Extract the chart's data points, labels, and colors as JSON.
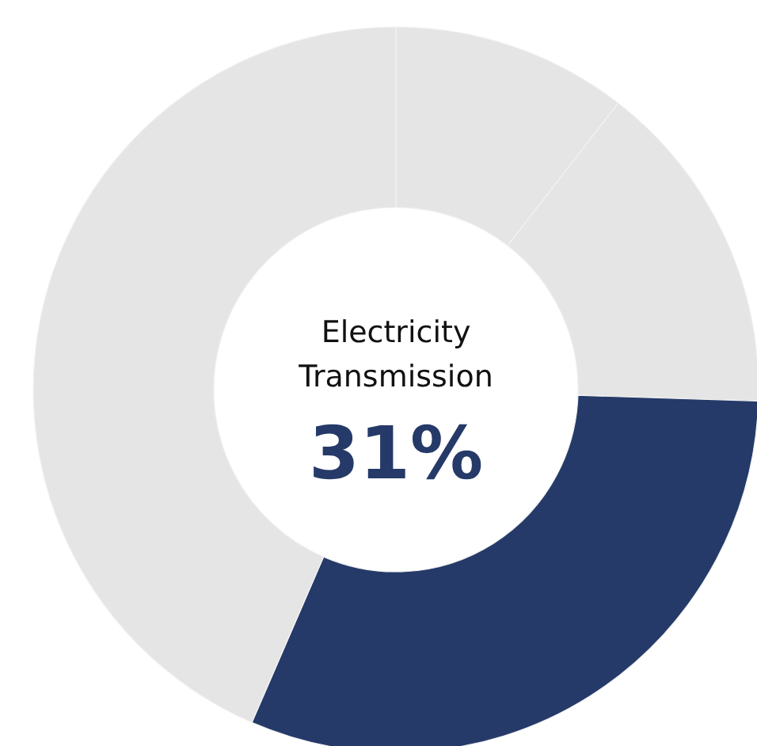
{
  "chart_data": {
    "type": "donut",
    "categories": [
      null,
      null,
      "Electricity Transmission",
      null
    ],
    "values": [
      10.5,
      15,
      31,
      43.5
    ],
    "colors": [
      "#e5e5e5",
      "#e5e5e5",
      "#253a68",
      "#e5e5e5"
    ],
    "value_labels": [
      null,
      null,
      "31%",
      null
    ]
  }
}
